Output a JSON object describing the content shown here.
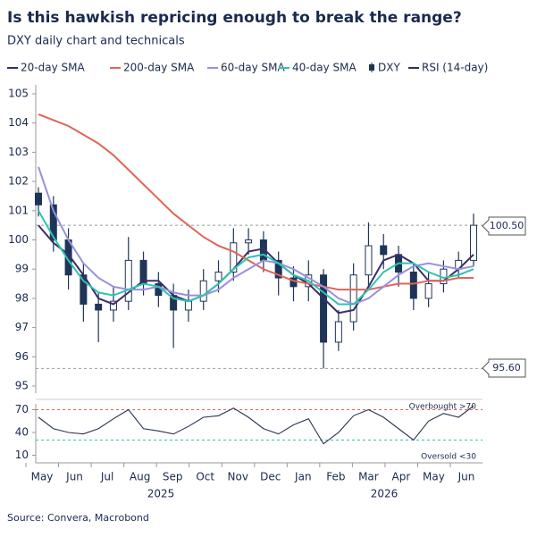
{
  "chart_data": [
    {
      "type": "candlestick",
      "title": "Is this hawkish repricing enough to break the range?",
      "subtitle": "DXY daily chart and technicals",
      "source": "Source: Convera, Macrobond",
      "x_labels": [
        "May",
        "Jun",
        "Jul",
        "Aug",
        "Sep",
        "Oct",
        "Nov",
        "Dec",
        "Jan",
        "Feb",
        "Mar",
        "Apr",
        "May",
        "Jun"
      ],
      "x_group_labels": [
        "2025",
        "2026"
      ],
      "ylim": [
        95,
        105
      ],
      "yticks": [
        95,
        96,
        97,
        98,
        99,
        100,
        101,
        102,
        103,
        104,
        105
      ],
      "candles": {
        "name": "DXY",
        "color": "#1e3557",
        "open": [
          101.6,
          101.2,
          100.0,
          98.8,
          97.8,
          97.6,
          97.9,
          99.3,
          98.5,
          98.1,
          97.6,
          97.9,
          98.6,
          98.9,
          99.9,
          100.0,
          99.3,
          98.7,
          98.4,
          98.8,
          96.5,
          97.2,
          98.8,
          99.8,
          99.5,
          98.9,
          98.0,
          98.5,
          99.0,
          99.3
        ],
        "high": [
          101.8,
          101.5,
          100.4,
          99.2,
          98.2,
          98.4,
          100.1,
          99.6,
          98.9,
          98.5,
          98.3,
          99.0,
          99.3,
          100.4,
          100.4,
          100.3,
          99.6,
          99.1,
          99.3,
          99.0,
          97.6,
          99.2,
          100.6,
          100.2,
          99.8,
          99.2,
          98.9,
          99.3,
          99.6,
          100.9
        ],
        "low": [
          100.8,
          99.6,
          98.3,
          97.2,
          96.5,
          97.2,
          97.6,
          98.1,
          97.7,
          96.3,
          97.2,
          97.6,
          98.2,
          98.6,
          99.5,
          98.9,
          98.1,
          97.9,
          97.9,
          95.6,
          96.2,
          96.9,
          98.4,
          99.0,
          98.4,
          97.6,
          97.7,
          98.2,
          98.7,
          99.1
        ],
        "close": [
          101.2,
          100.0,
          98.8,
          97.8,
          97.6,
          97.9,
          99.3,
          98.5,
          98.1,
          97.6,
          97.9,
          98.6,
          98.9,
          99.9,
          100.0,
          99.3,
          98.7,
          98.4,
          98.8,
          96.5,
          97.2,
          98.8,
          99.8,
          99.5,
          98.9,
          98.0,
          98.5,
          99.0,
          99.3,
          100.5
        ]
      },
      "series": [
        {
          "name": "20-day SMA",
          "color": "#3b2d6b",
          "values": [
            100.5,
            99.9,
            99.5,
            98.8,
            98.0,
            97.8,
            98.2,
            98.6,
            98.6,
            98.1,
            97.9,
            98.1,
            98.5,
            99.0,
            99.6,
            99.7,
            99.2,
            98.8,
            98.5,
            98.0,
            97.5,
            97.6,
            98.4,
            99.3,
            99.5,
            99.2,
            98.6,
            98.6,
            99.0,
            99.5
          ]
        },
        {
          "name": "200-day SMA",
          "color": "#e0655a",
          "values": [
            104.3,
            104.1,
            103.9,
            103.6,
            103.3,
            102.9,
            102.4,
            101.9,
            101.4,
            100.9,
            100.5,
            100.1,
            99.8,
            99.6,
            99.3,
            99.0,
            98.8,
            98.6,
            98.5,
            98.4,
            98.3,
            98.3,
            98.3,
            98.4,
            98.5,
            98.5,
            98.6,
            98.6,
            98.7,
            98.7
          ]
        },
        {
          "name": "60-day SMA",
          "color": "#9a8fe0",
          "values": [
            102.5,
            101.0,
            100.0,
            99.2,
            98.7,
            98.4,
            98.3,
            98.3,
            98.4,
            98.2,
            98.1,
            98.1,
            98.3,
            98.7,
            99.0,
            99.3,
            99.2,
            99.0,
            98.7,
            98.4,
            98.0,
            97.8,
            98.0,
            98.4,
            98.8,
            99.1,
            99.2,
            99.1,
            99.0,
            99.1
          ]
        },
        {
          "name": "40-day SMA",
          "color": "#2ec4b0",
          "values": [
            101.0,
            100.1,
            99.3,
            98.6,
            98.2,
            98.1,
            98.3,
            98.5,
            98.4,
            98.0,
            97.9,
            98.1,
            98.5,
            99.0,
            99.4,
            99.5,
            99.2,
            98.8,
            98.6,
            98.2,
            97.8,
            97.8,
            98.3,
            98.9,
            99.2,
            99.2,
            98.9,
            98.7,
            98.8,
            99.0
          ]
        }
      ],
      "annotations": [
        {
          "label": "100.50",
          "value": 100.5
        },
        {
          "label": "95.60",
          "value": 95.6
        }
      ]
    },
    {
      "type": "line",
      "ylim": [
        0,
        80
      ],
      "yticks": [
        10,
        40,
        70
      ],
      "series": [
        {
          "name": "RSI (14-day)",
          "color": "#2a3550",
          "values": [
            60,
            45,
            40,
            38,
            45,
            58,
            70,
            45,
            42,
            38,
            48,
            60,
            62,
            72,
            60,
            45,
            38,
            50,
            58,
            25,
            40,
            62,
            70,
            60,
            45,
            30,
            55,
            65,
            60,
            75
          ]
        }
      ],
      "annotations": [
        {
          "label": "Overbought >70",
          "value": 70,
          "color": "#e0655a"
        },
        {
          "label": "Oversold <30",
          "value": 30,
          "color": "#2ec4b0"
        }
      ]
    }
  ]
}
